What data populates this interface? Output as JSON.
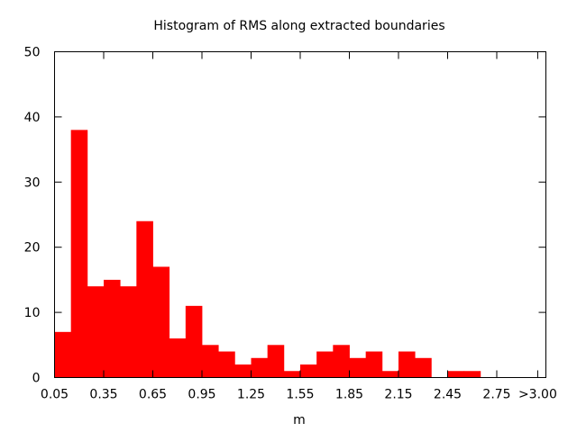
{
  "chart_data": {
    "type": "bar",
    "title": "Histogram of RMS along extracted boundaries",
    "xlabel": "m",
    "ylabel": "",
    "ylim": [
      0,
      50
    ],
    "yticks": [
      0,
      10,
      20,
      30,
      40,
      50
    ],
    "xlim": [
      0.05,
      3.05
    ],
    "xticks": [
      {
        "value": 0.05,
        "label": "0.05"
      },
      {
        "value": 0.35,
        "label": "0.35"
      },
      {
        "value": 0.65,
        "label": "0.65"
      },
      {
        "value": 0.95,
        "label": "0.95"
      },
      {
        "value": 1.25,
        "label": "1.25"
      },
      {
        "value": 1.55,
        "label": "1.55"
      },
      {
        "value": 1.85,
        "label": "1.85"
      },
      {
        "value": 2.15,
        "label": "2.15"
      },
      {
        "value": 2.45,
        "label": "2.45"
      },
      {
        "value": 2.75,
        "label": "2.75"
      },
      {
        "value": 3.0,
        "label": ">3.00"
      }
    ],
    "bin_width": 0.1,
    "bin_starts": [
      0.05,
      0.15,
      0.25,
      0.35,
      0.45,
      0.55,
      0.65,
      0.75,
      0.85,
      0.95,
      1.05,
      1.15,
      1.25,
      1.35,
      1.45,
      1.55,
      1.65,
      1.75,
      1.85,
      1.95,
      2.05,
      2.15,
      2.25,
      2.35,
      2.45,
      2.55,
      2.65,
      2.75,
      2.85,
      2.95
    ],
    "values": [
      7,
      38,
      14,
      15,
      14,
      24,
      17,
      6,
      11,
      5,
      4,
      2,
      3,
      5,
      1,
      2,
      4,
      5,
      3,
      4,
      1,
      4,
      3,
      0,
      1,
      1,
      0,
      0,
      0,
      0
    ],
    "bar_color": "#ff0000",
    "grid": false,
    "legend": "none"
  }
}
